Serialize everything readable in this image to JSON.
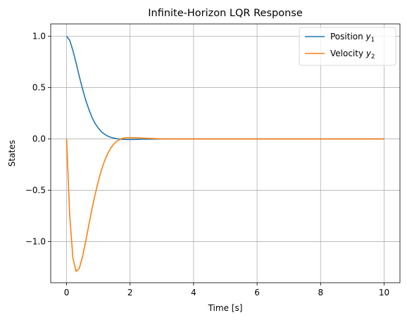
{
  "chart_data": {
    "type": "line",
    "title": "Infinite-Horizon LQR Response",
    "xlabel": "Time [s]",
    "ylabel": "States",
    "xlim": [
      -0.5,
      10.5
    ],
    "ylim": [
      -1.4,
      1.12
    ],
    "xticks": [
      0,
      2,
      4,
      6,
      8,
      10
    ],
    "xtick_labels": [
      "0",
      "2",
      "4",
      "6",
      "8",
      "10"
    ],
    "yticks": [
      1.0,
      0.5,
      0.0,
      -0.5,
      -1.0
    ],
    "ytick_labels": [
      "1.0",
      "0.5",
      "0.0",
      "−0.5",
      "−1.0"
    ],
    "grid": true,
    "legend": "top-right",
    "x": [
      0,
      0.1,
      0.2,
      0.3,
      0.4,
      0.5,
      0.6,
      0.7,
      0.8,
      0.9,
      1.0,
      1.1,
      1.2,
      1.3,
      1.4,
      1.5,
      1.6,
      1.7,
      1.8,
      1.9,
      2.0,
      2.2,
      2.4,
      2.6,
      2.8,
      3.0,
      3.5,
      4.0,
      5.0,
      6.0,
      7.0,
      8.0,
      9.0,
      10.0
    ],
    "series": [
      {
        "name_main": "Position ",
        "name_var": "y",
        "name_sub": "1",
        "color": "#1f77b4",
        "values": [
          1.0,
          0.96,
          0.86,
          0.74,
          0.61,
          0.49,
          0.38,
          0.29,
          0.21,
          0.15,
          0.105,
          0.07,
          0.045,
          0.027,
          0.015,
          0.007,
          0.002,
          -0.002,
          -0.004,
          -0.005,
          -0.005,
          -0.004,
          -0.003,
          -0.002,
          -0.001,
          0.0,
          0.0,
          0.0,
          0.0,
          0.0,
          0.0,
          0.0,
          0.0,
          0.0
        ]
      },
      {
        "name_main": "Velocity ",
        "name_var": "y",
        "name_sub": "2",
        "color": "#ff7f0e",
        "values": [
          0.0,
          -0.75,
          -1.16,
          -1.29,
          -1.26,
          -1.15,
          -1.0,
          -0.84,
          -0.68,
          -0.54,
          -0.41,
          -0.3,
          -0.21,
          -0.14,
          -0.085,
          -0.045,
          -0.018,
          0.0,
          0.008,
          0.012,
          0.013,
          0.011,
          0.008,
          0.005,
          0.003,
          0.001,
          0.0,
          0.0,
          0.0,
          0.0,
          0.0,
          0.0,
          0.0,
          0.0
        ]
      }
    ]
  }
}
